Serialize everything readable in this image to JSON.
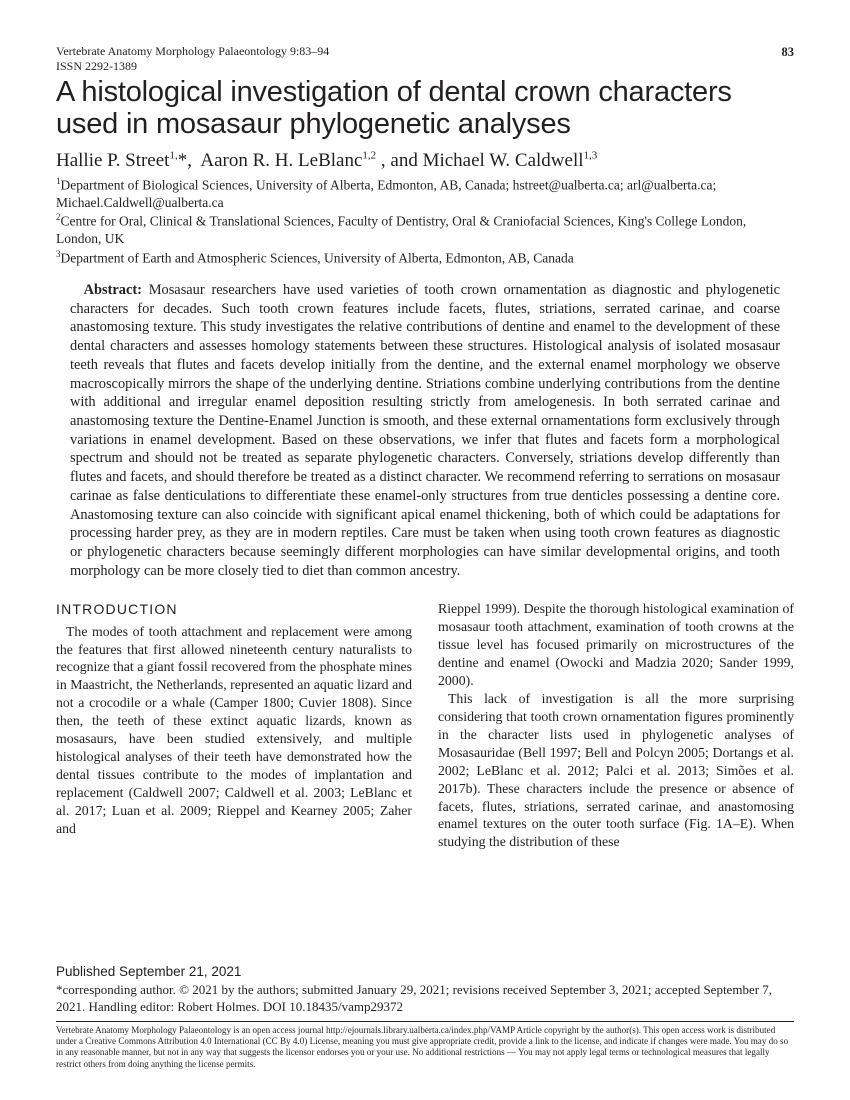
{
  "header": {
    "journal_line": "Vertebrate Anatomy Morphology Palaeontology 9:83–94",
    "issn": "ISSN 2292-1389",
    "page_number": "83"
  },
  "title": "A histological investigation of dental crown characters used in mosasaur phylogenetic analyses",
  "authors_html": "Hallie P. Street<sup>1,</sup>*,  Aaron R. H. LeBlanc<sup>1,2</sup> , and Michael W. Caldwell<sup>1,3</sup>",
  "affiliations": [
    "<sup>1</sup>Department of Biological Sciences, University of Alberta, Edmonton, AB, Canada; hstreet@ualberta.ca; arl@ualberta.ca; Michael.Caldwell@ualberta.ca",
    "<sup>2</sup>Centre for Oral, Clinical & Translational Sciences, Faculty of Dentistry, Oral & Craniofacial Sciences, King's College London, London, UK",
    "<sup>3</sup>Department of Earth and Atmospheric Sciences, University of Alberta, Edmonton, AB, Canada"
  ],
  "abstract_label": "Abstract:",
  "abstract_body": "Mosasaur researchers have used varieties of tooth crown ornamentation as diagnostic and phylogenetic characters for decades. Such tooth crown features include facets, flutes, striations, serrated carinae, and coarse anastomosing texture. This study investigates the relative contributions of dentine and enamel to the development of these dental characters and assesses homology statements between these structures. Histological analysis of isolated mosasaur teeth reveals that flutes and facets develop initially from the dentine, and the external enamel morphology we observe macroscopically mirrors the shape of the underlying dentine. Striations combine underlying contributions from the dentine with additional and irregular enamel deposition resulting strictly from amelogenesis. In both serrated carinae and anastomosing texture the Dentine-Enamel Junction is smooth, and these external ornamentations form exclusively through variations in enamel development. Based on these observations, we infer that flutes and facets form a morphological spectrum and should not be treated as separate phylogenetic characters. Conversely, striations develop differently than flutes and facets, and should therefore be treated as a distinct character. We recommend referring to serrations on mosasaur carinae as false denticulations to differentiate these enamel-only structures from true denticles possessing a dentine core. Anastomosing texture can also coincide with significant apical enamel thickening, both of which could be adaptations for processing harder prey, as they are in modern reptiles. Care must be taken when using tooth crown features as diagnostic or phylogenetic characters because seemingly different morphologies can have similar developmental origins, and tooth morphology can be more closely tied to diet than common ancestry.",
  "introduction_heading": "INTRODUCTION",
  "intro_col1_p1": "The modes of tooth attachment and replacement were among the features that first allowed nineteenth century naturalists to recognize that a giant fossil recovered from the phosphate mines in Maastricht, the Netherlands, represented an aquatic lizard and not a crocodile or a whale (Camper 1800; Cuvier 1808). Since then, the teeth of these extinct aquatic lizards, known as mosasaurs, have been studied extensively, and multiple histological analyses of their teeth have demonstrated how the dental tissues contribute to the modes of implantation and replacement (Caldwell 2007; Caldwell et al. 2003; LeBlanc et al. 2017; Luan et al. 2009; Rieppel and Kearney 2005; Zaher and",
  "intro_col2_p1": "Rieppel 1999). Despite the thorough histological examination of mosasaur tooth attachment, examination of tooth crowns at the tissue level has focused primarily on microstructures of the dentine and enamel (Owocki and Madzia 2020; Sander 1999, 2000).",
  "intro_col2_p2": "This lack of investigation is all the more surprising considering that tooth crown ornamentation figures prominently in the character lists used in phylogenetic analyses of Mosasauridae (Bell 1997; Bell and Polcyn 2005; Dortangs et al. 2002; LeBlanc et al. 2012; Palci et al. 2013; Simões et al. 2017b). These characters include the presence or absence of facets, flutes, striations, serrated carinae, and anastomosing enamel textures on the outer tooth surface (Fig. 1A–E). When studying the distribution of these",
  "footer": {
    "published": "Published September 21, 2021",
    "corresponding": "*corresponding author. © 2021 by the authors; submitted January 29, 2021; revisions received September 3, 2021; accepted September 7, 2021. Handling editor: Robert Holmes.  DOI 10.18435/vamp29372",
    "license": "Vertebrate Anatomy Morphology Palaeontology is an open access journal http://ejournals.library.ualberta.ca/index.php/VAMP  Article copyright by the author(s). This open access work is distributed under a Creative Commons Attribution 4.0 International (CC By 4.0) License, meaning you must give appropriate credit, provide a link to the license, and indicate if changes were made. You may do so in any reasonable manner, but not in any way that suggests the licensor endorses you or your use. No additional restrictions — You may not apply legal terms or technological measures that legally restrict others from doing anything the license permits."
  }
}
